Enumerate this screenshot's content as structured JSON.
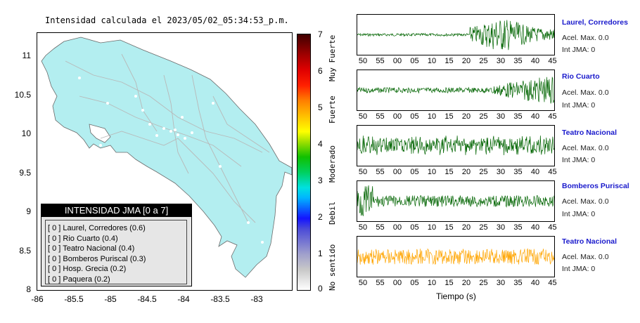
{
  "map": {
    "title": "Intensidad calculada el 2023/05/02_05:34:53_p.m.",
    "y_ticks": [
      "11",
      "10.5",
      "10",
      "9.5",
      "9",
      "8.5",
      "8"
    ],
    "x_ticks": [
      "-86",
      "-85.5",
      "-85",
      "-84.5",
      "-84",
      "-83.5",
      "-83"
    ],
    "land_color": "#b3eef0"
  },
  "legend": {
    "title": "INTENSIDAD JMA [0 a 7]",
    "items": [
      "[ 0 ] Laurel, Corredores (0.6)",
      "[ 0 ] Rio Cuarto (0.4)",
      "[ 0 ] Teatro Nacional (0.4)",
      "[ 0 ] Bomberos Puriscal (0.3)",
      "[ 0 ] Hosp. Grecia (0.2)",
      "[ 0 ] Paquera (0.2)"
    ]
  },
  "colorbar": {
    "ticks": [
      "7",
      "6",
      "5",
      "4",
      "3",
      "2",
      "1",
      "0"
    ],
    "labels": [
      "Muy Fuerte",
      "Fuerte",
      "Moderado",
      "Debil",
      "No sentido"
    ]
  },
  "traces": {
    "x_ticks": [
      "50",
      "55",
      "00",
      "05",
      "10",
      "15",
      "20",
      "25",
      "30",
      "35",
      "40",
      "45"
    ],
    "x_label": "Tiempo (s)",
    "stations": [
      {
        "name": "Laurel, Corredores",
        "acel": "Acel. Max. 0.0",
        "jma": "Int JMA: 0",
        "color": "#006400"
      },
      {
        "name": "Rio Cuarto",
        "acel": "Acel. Max. 0.0",
        "jma": "Int JMA: 0",
        "color": "#006400"
      },
      {
        "name": "Teatro Nacional",
        "acel": "Acel. Max. 0.0",
        "jma": "Int JMA: 0",
        "color": "#006400"
      },
      {
        "name": "Bomberos Puriscal",
        "acel": "Acel. Max. 0.0",
        "jma": "Int JMA: 0",
        "color": "#006400"
      },
      {
        "name": "Teatro Nacional",
        "acel": "Acel. Max. 0.0",
        "jma": "Int JMA: 0",
        "color": "#ffa500"
      }
    ]
  }
}
